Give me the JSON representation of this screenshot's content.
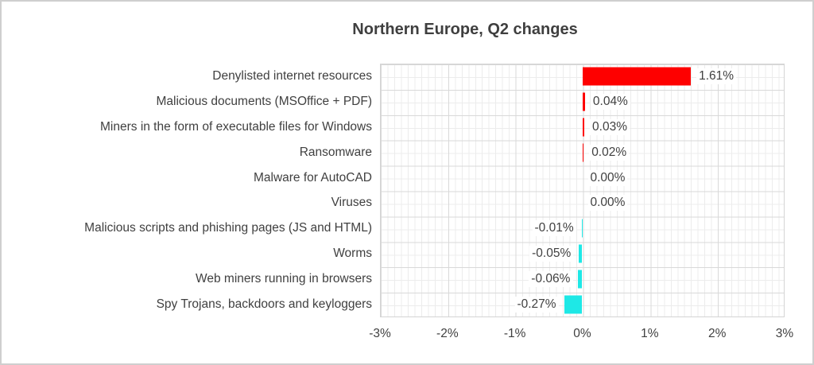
{
  "chart_data": {
    "type": "bar",
    "orientation": "horizontal",
    "title": "Northern Europe, Q2 changes",
    "categories": [
      "Denylisted internet resources",
      "Malicious documents (MSOffice + PDF)",
      "Miners in the form of executable files for Windows",
      "Ransomware",
      "Malware for AutoCAD",
      "Viruses",
      "Malicious scripts and phishing pages (JS and HTML)",
      "Worms",
      "Web miners running in browsers",
      "Spy Trojans, backdoors and keyloggers"
    ],
    "values": [
      1.61,
      0.04,
      0.03,
      0.02,
      0.0,
      0.0,
      -0.01,
      -0.05,
      -0.06,
      -0.27
    ],
    "value_labels": [
      "1.61%",
      "0.04%",
      "0.03%",
      "0.02%",
      "0.00%",
      "0.00%",
      "-0.01%",
      "-0.05%",
      "-0.06%",
      "-0.27%"
    ],
    "x_tick_labels": [
      "-3%",
      "-2%",
      "-1%",
      "0%",
      "1%",
      "2%",
      "3%"
    ],
    "xlim": [
      -3,
      3
    ],
    "x_major_step": 1,
    "x_minor_step": 0.1,
    "grid": "major-and-minor-both-axes",
    "legend": "none",
    "colors": {
      "positive_bar": "#fe0000",
      "negative_bar": "#1ee8e6",
      "text": "#404040",
      "title_text": "#3f3f3f",
      "major_grid": "#d9d9d9",
      "minor_grid": "#ececec",
      "plot_border": "#d4d4d4",
      "frame_border": "#cfcfcf"
    }
  }
}
